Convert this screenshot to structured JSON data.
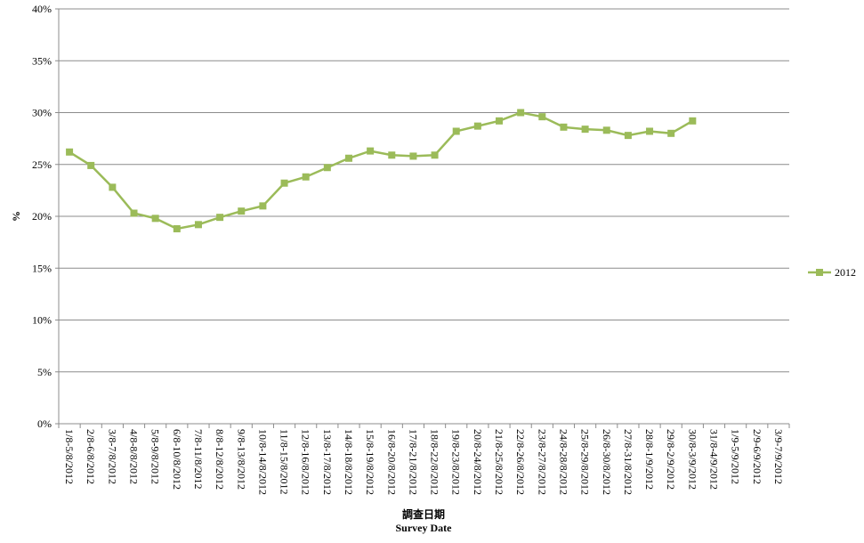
{
  "chart_data": {
    "type": "line",
    "y_label": "%",
    "x_label": "調查日期",
    "x_label_sub": "Survey Date",
    "categories": [
      "1/8-5/8/2012",
      "2/8-6/8/2012",
      "3/8-7/8/2012",
      "4/8-8/8/2012",
      "5/8-9/8/2012",
      "6/8-10/8/2012",
      "7/8-11/8/2012",
      "8/8-12/8/2012",
      "9/8-13/8/2012",
      "10/8-14/8/2012",
      "11/8-15/8/2012",
      "12/8-16/8/2012",
      "13/8-17/8/2012",
      "14/8-18/8/2012",
      "15/8-19/8/2012",
      "16/8-20/8/2012",
      "17/8-21/8/2012",
      "18/8-22/8/2012",
      "19/8-23/8/2012",
      "20/8-24/8/2012",
      "21/8-25/8/2012",
      "22/8-26/8/2012",
      "23/8-27/8/2012",
      "24/8-28/8/2012",
      "25/8-29/8/2012",
      "26/8-30/8/2012",
      "27/8-31/8/2012",
      "28/8-1/9/2012",
      "29/8-2/9/2012",
      "30/8-3/9/2012",
      "31/8-4/9/2012",
      "1/9-5/9/2012",
      "2/9-6/9/2012",
      "3/9-7/9/2012"
    ],
    "series": [
      {
        "name": "2012",
        "color": "#9bbb59",
        "values": [
          26.2,
          24.9,
          22.8,
          20.3,
          19.8,
          18.8,
          19.2,
          19.9,
          20.5,
          21.0,
          23.2,
          23.8,
          24.7,
          25.6,
          26.3,
          25.9,
          25.8,
          25.9,
          28.2,
          28.7,
          29.2,
          30.0,
          29.6,
          28.6,
          28.4,
          28.3,
          27.8,
          28.2,
          28.0,
          29.2,
          null,
          null,
          null,
          null
        ]
      }
    ],
    "ylim": [
      0,
      40
    ],
    "yticks": [
      {
        "value": 0,
        "label": "0%"
      },
      {
        "value": 5,
        "label": "5%"
      },
      {
        "value": 10,
        "label": "10%"
      },
      {
        "value": 15,
        "label": "15%"
      },
      {
        "value": 20,
        "label": "20%"
      },
      {
        "value": 25,
        "label": "25%"
      },
      {
        "value": 30,
        "label": "30%"
      },
      {
        "value": 35,
        "label": "35%"
      },
      {
        "value": 40,
        "label": "40%"
      }
    ],
    "grid": true,
    "legend": "right"
  }
}
